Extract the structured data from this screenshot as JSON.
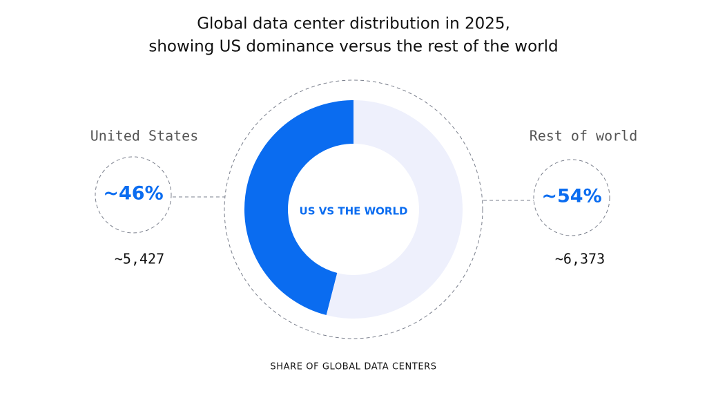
{
  "chart_data": {
    "type": "donut",
    "title": [
      "Global data center distribution in 2025,",
      "showing US dominance versus the rest of the world"
    ],
    "categories": [
      "United States",
      "Rest of world"
    ],
    "values": [
      46,
      54
    ],
    "value_labels": [
      "~46%",
      "~54%"
    ],
    "counts": [
      5427,
      6373
    ],
    "count_labels": [
      "~5,427",
      "~6,373"
    ],
    "colors": [
      "#0a6cf0",
      "#eef0fc"
    ],
    "center_label": "US VS THE WORLD",
    "caption": "SHARE OF GLOBAL DATA CENTERS"
  }
}
